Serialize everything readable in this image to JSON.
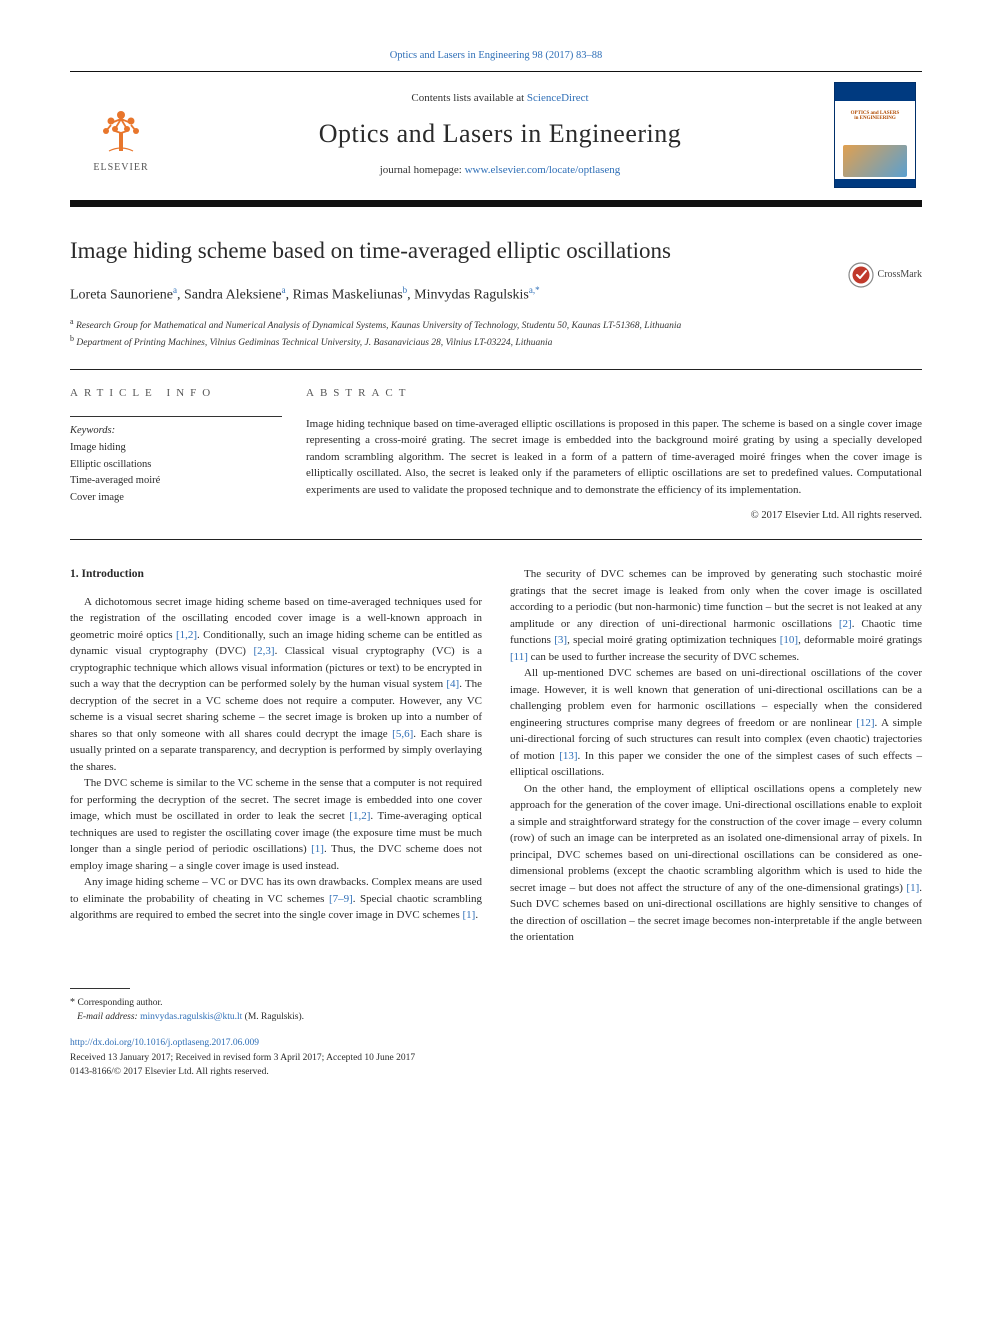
{
  "top_citation": {
    "text": "Optics and Lasers in Engineering 98 (2017) 83–88",
    "color": "#2f6fb7",
    "fontsize": 10.5
  },
  "header": {
    "contents_prefix": "Contents lists available at ",
    "contents_link": "ScienceDirect",
    "journal_name": "Optics and Lasers in Engineering",
    "homepage_prefix": "journal homepage: ",
    "homepage_url": "www.elsevier.com/locate/optlaseng",
    "publisher_word": "ELSEVIER",
    "cover": {
      "title_line1": "OPTICS and LASERS",
      "title_line2": "in ENGINEERING",
      "border_color": "#002f6a",
      "band_color": "#003a80",
      "title_color": "#b04a00"
    },
    "elsevier_tree_color": "#e8762c"
  },
  "crossmark": {
    "label": "CrossMark"
  },
  "paper": {
    "title": "Image hiding scheme based on time-averaged elliptic oscillations",
    "title_fontsize": 23,
    "authors": [
      {
        "name": "Loreta Saunoriene",
        "affil": "a"
      },
      {
        "name": "Sandra Aleksiene",
        "affil": "a"
      },
      {
        "name": "Rimas Maskeliunas",
        "affil": "b"
      },
      {
        "name": "Minvydas Ragulskis",
        "affil": "a,*"
      }
    ],
    "affiliations": [
      {
        "key": "a",
        "text": "Research Group for Mathematical and Numerical Analysis of Dynamical Systems, Kaunas University of Technology, Studentu 50, Kaunas LT-51368, Lithuania"
      },
      {
        "key": "b",
        "text": "Department of Printing Machines, Vilnius Gediminas Technical University, J. Basanaviciaus 28, Vilnius LT-03224, Lithuania"
      }
    ]
  },
  "article_info": {
    "label": "ARTICLE INFO",
    "keywords_label": "Keywords:",
    "keywords": [
      "Image hiding",
      "Elliptic oscillations",
      "Time-averaged moiré",
      "Cover image"
    ]
  },
  "abstract": {
    "label": "ABSTRACT",
    "text": "Image hiding technique based on time-averaged elliptic oscillations is proposed in this paper. The scheme is based on a single cover image representing a cross-moiré grating. The secret image is embedded into the background moiré grating by using a specially developed random scrambling algorithm. The secret is leaked in a form of a pattern of time-averaged moiré fringes when the cover image is elliptically oscillated. Also, the secret is leaked only if the parameters of elliptic oscillations are set to predefined values. Computational experiments are used to validate the proposed technique and to demonstrate the efficiency of its implementation.",
    "copyright": "© 2017 Elsevier Ltd. All rights reserved."
  },
  "body": {
    "section_heading": "1.  Introduction",
    "left_paras": [
      "A dichotomous secret image hiding scheme based on time-averaged techniques used for the registration of the oscillating encoded cover image is a well-known approach in geometric moiré optics [1,2]. Conditionally, such an image hiding scheme can be entitled as dynamic visual cryptography (DVC) [2,3]. Classical visual cryptography (VC) is a cryptographic technique which allows visual information (pictures or text) to be encrypted in such a way that the decryption can be performed solely by the human visual system [4]. The decryption of the secret in a VC scheme does not require a computer. However, any VC scheme is a visual secret sharing scheme – the secret image is broken up into a number of shares so that only someone with all shares could decrypt the image [5,6]. Each share is usually printed on a separate transparency, and decryption is performed by simply overlaying the shares.",
      "The DVC scheme is similar to the VC scheme in the sense that a computer is not required for performing the decryption of the secret. The secret image is embedded into one cover image, which must be oscillated in order to leak the secret [1,2]. Time-averaging optical techniques are used to register the oscillating cover image (the exposure time must be much longer than a single period of periodic oscillations) [1]. Thus, the DVC scheme does not employ image sharing – a single cover image is used instead.",
      "Any image hiding scheme – VC or DVC has its own drawbacks. Complex means are used to eliminate the probability of cheating in VC schemes [7–9]. Special chaotic scrambling algorithms are required to embed the secret into the single cover image in DVC schemes [1]."
    ],
    "right_paras": [
      "The security of DVC schemes can be improved by generating such stochastic moiré gratings that the secret image is leaked from only when the cover image is oscillated according to a periodic (but non-harmonic) time function – but the secret is not leaked at any amplitude or any direction of uni-directional harmonic oscillations [2]. Chaotic time functions [3], special moiré grating optimization techniques [10], deformable moiré gratings [11] can be used to further increase the security of DVC schemes.",
      "All up-mentioned DVC schemes are based on uni-directional oscillations of the cover image. However, it is well known that generation of uni-directional oscillations can be a challenging problem even for harmonic oscillations – especially when the considered engineering structures comprise many degrees of freedom or are nonlinear [12]. A simple uni-directional forcing of such structures can result into complex (even chaotic) trajectories of motion [13]. In this paper we consider the one of the simplest cases of such effects – elliptical oscillations.",
      "On the other hand, the employment of elliptical oscillations opens a completely new approach for the generation of the cover image. Uni-directional oscillations enable to exploit a simple and straightforward strategy for the construction of the cover image – every column (row) of such an image can be interpreted as an isolated one-dimensional array of pixels. In principal, DVC schemes based on uni-directional oscillations can be considered as one-dimensional problems (except the chaotic scrambling algorithm which is used to hide the secret image – but does not affect the structure of any of the one-dimensional gratings) [1]. Such DVC schemes based on uni-directional oscillations are highly sensitive to changes of the direction of oscillation – the secret image becomes non-interpretable if the angle between the orientation"
    ],
    "ref_patterns": [
      "[1,2]",
      "[2,3]",
      "[4]",
      "[5,6]",
      "[1,2]",
      "[1]",
      "[7–9]",
      "[1]",
      "[2]",
      "[3]",
      "[10]",
      "[11]",
      "[12]",
      "[13]",
      "[1]"
    ],
    "ref_color": "#2f6fb7"
  },
  "footer": {
    "corr_label": "Corresponding author.",
    "email_label": "E-mail address:",
    "email": "minvydas.ragulskis@ktu.lt",
    "email_suffix": "(M. Ragulskis).",
    "doi_url": "http://dx.doi.org/10.1016/j.optlaseng.2017.06.009",
    "received": "Received 13 January 2017; Received in revised form 3 April 2017; Accepted 10 June 2017",
    "issn": "0143-8166/© 2017 Elsevier Ltd. All rights reserved."
  },
  "colors": {
    "link": "#2f6fb7",
    "text": "#2a2a2a",
    "rule": "#222222",
    "background": "#ffffff"
  }
}
